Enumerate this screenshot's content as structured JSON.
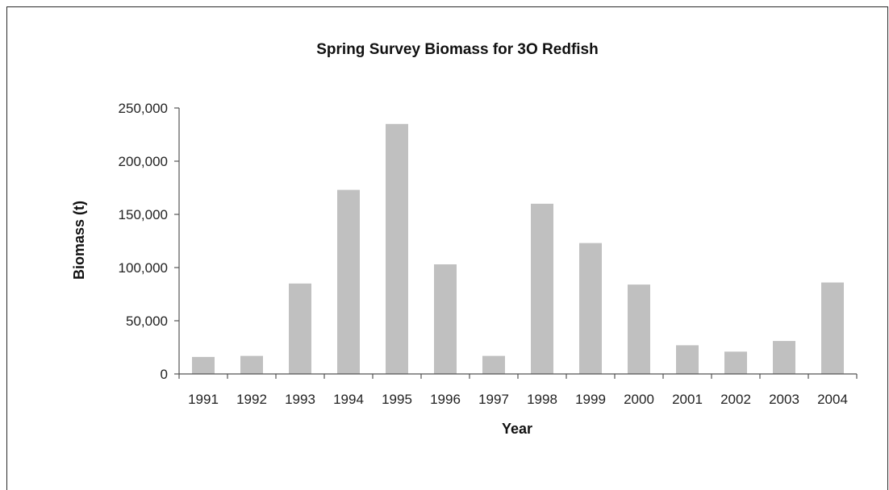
{
  "chart_data": {
    "type": "bar",
    "title": "Spring Survey Biomass for 3O Redfish",
    "xlabel": "Year",
    "ylabel": "Biomass (t)",
    "categories": [
      "1991",
      "1992",
      "1993",
      "1994",
      "1995",
      "1996",
      "1997",
      "1998",
      "1999",
      "2000",
      "2001",
      "2002",
      "2003",
      "2004"
    ],
    "values": [
      16000,
      17000,
      85000,
      173000,
      235000,
      103000,
      17000,
      160000,
      123000,
      84000,
      27000,
      21000,
      31000,
      86000
    ],
    "ylim": [
      0,
      250000
    ],
    "yticks": [
      "0",
      "50,000",
      "100,000",
      "150,000",
      "200,000",
      "250,000"
    ],
    "ytick_values": [
      0,
      50000,
      100000,
      150000,
      200000,
      250000
    ],
    "grid": false,
    "legend": "none",
    "bar_color": "#c0c0c0"
  }
}
